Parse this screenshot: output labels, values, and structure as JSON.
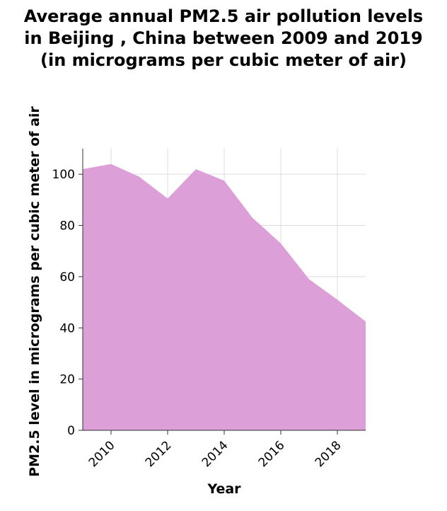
{
  "chart_data": {
    "type": "area",
    "title_lines": [
      "Average annual PM2.5 air pollution levels",
      "in Beijing , China between 2009 and 2019",
      "(in micrograms per cubic meter of air)"
    ],
    "xlabel": "Year",
    "ylabel": "PM2.5 level in micrograms per cubic meter of air",
    "x": [
      2009,
      2010,
      2011,
      2012,
      2013,
      2014,
      2015,
      2016,
      2017,
      2018,
      2019
    ],
    "y": [
      102,
      104,
      99,
      90.5,
      102,
      97.5,
      83,
      73,
      59,
      51,
      42.5
    ],
    "xlim": [
      2009,
      2019
    ],
    "ylim": [
      0,
      110
    ],
    "xticks": [
      2010,
      2012,
      2014,
      2016,
      2018
    ],
    "yticks": [
      0,
      20,
      40,
      60,
      80,
      100
    ],
    "grid": true,
    "fill_color": "#dd9fd7",
    "grid_color": "#dcdcdc"
  }
}
